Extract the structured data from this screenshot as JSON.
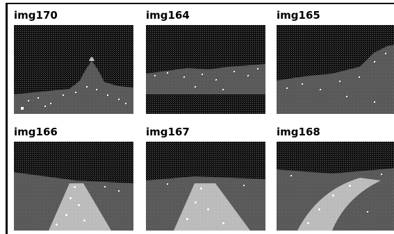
{
  "gallery": {
    "tiles": [
      {
        "label": "img170",
        "scene": "night-skyline-dome"
      },
      {
        "label": "img164",
        "scene": "night-city-waterfront"
      },
      {
        "label": "img165",
        "scene": "night-city-street"
      },
      {
        "label": "img166",
        "scene": "night-highway-traffic"
      },
      {
        "label": "img167",
        "scene": "night-highway-interchange"
      },
      {
        "label": "img168",
        "scene": "night-highway-curve"
      }
    ]
  }
}
